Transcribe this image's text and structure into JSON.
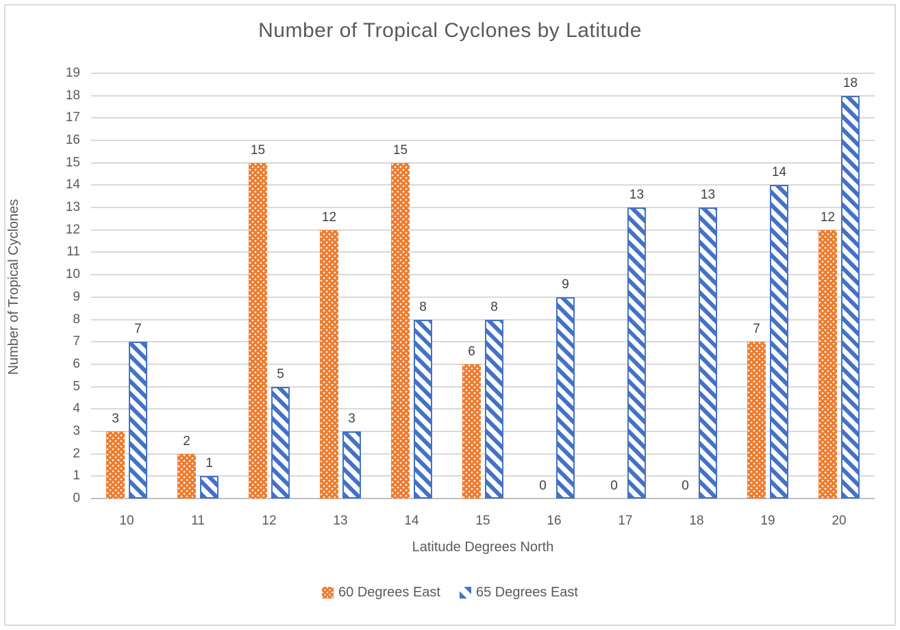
{
  "chart_data": {
    "type": "bar",
    "title": "Number of Tropical Cyclones by Latitude",
    "xlabel": "Latitude Degrees North",
    "ylabel": "Number of Tropical Cyclones",
    "categories": [
      "10",
      "11",
      "12",
      "13",
      "14",
      "15",
      "16",
      "17",
      "18",
      "19",
      "20"
    ],
    "series": [
      {
        "name": "60 Degrees East",
        "color": "#ED7D31",
        "pattern": "white-dots-on-orange",
        "values": [
          3,
          2,
          15,
          12,
          15,
          6,
          0,
          0,
          0,
          7,
          12
        ]
      },
      {
        "name": "65 Degrees East",
        "color": "#4472C4",
        "pattern": "blue-diagonal-stripes-on-white",
        "values": [
          7,
          1,
          5,
          3,
          8,
          8,
          9,
          13,
          13,
          14,
          18
        ]
      }
    ],
    "ylim": [
      0,
      19
    ],
    "ytick_step": 1,
    "grid": true,
    "data_labels": true,
    "legend_position": "bottom"
  },
  "style_colors": {
    "title_text": "#595959",
    "axis_text": "#595959",
    "data_label_text": "#404040",
    "gridline": "#D9D9D9",
    "axis_line": "#BFBFBF",
    "border": "#D9D9D9",
    "series_orange": "#ED7D31",
    "series_blue": "#4472C4"
  }
}
